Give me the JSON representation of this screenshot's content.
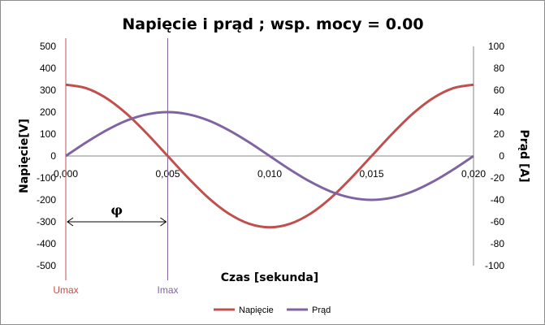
{
  "chart_data": {
    "type": "line",
    "title": "Napięcie i prąd ; wsp. mocy = 0.00",
    "xlabel": "Czas [sekunda]",
    "ylabel_left": "Napięcie[V]",
    "ylabel_right": "Prąd [A]",
    "xlim": [
      0,
      0.02
    ],
    "ylim_left": [
      -500,
      500
    ],
    "ylim_right": [
      -100,
      100
    ],
    "x_ticks": [
      "0,000",
      "0,005",
      "0,010",
      "0,015",
      "0,020"
    ],
    "y_left_ticks": [
      "500",
      "400",
      "300",
      "200",
      "100",
      "0",
      "-100",
      "-200",
      "-300",
      "-400",
      "-500"
    ],
    "y_right_ticks": [
      "100",
      "80",
      "60",
      "40",
      "20",
      "0",
      "-20",
      "-40",
      "-60",
      "-80",
      "-100"
    ],
    "x": [
      0,
      0.001,
      0.002,
      0.003,
      0.004,
      0.005,
      0.006,
      0.007,
      0.008,
      0.009,
      0.01,
      0.011,
      0.012,
      0.013,
      0.014,
      0.015,
      0.016,
      0.017,
      0.018,
      0.019,
      0.02
    ],
    "series": [
      {
        "name": "Napięcie",
        "axis": "left",
        "color": "#c0504d",
        "values": [
          325,
          309,
          263,
          191,
          100,
          0,
          -100,
          -191,
          -263,
          -309,
          -325,
          -309,
          -263,
          -191,
          -100,
          0,
          100,
          191,
          263,
          309,
          325
        ]
      },
      {
        "name": "Prąd",
        "axis": "right",
        "color": "#8064a2",
        "values": [
          0,
          12.4,
          23.5,
          32.4,
          38.0,
          40.0,
          38.0,
          32.4,
          23.5,
          12.4,
          0,
          -12.4,
          -23.5,
          -32.4,
          -38.0,
          -40.0,
          -38.0,
          -32.4,
          -23.5,
          -12.4,
          0
        ]
      }
    ],
    "markers": [
      {
        "label": "Umax",
        "x": 0,
        "color": "#c0504d"
      },
      {
        "label": "Imax",
        "x": 0.005,
        "color": "#8064a2"
      }
    ],
    "phase_annotation": {
      "label": "φ",
      "x_from": 0,
      "x_to": 0.005,
      "y": -300
    },
    "grid": false,
    "legend_position": "bottom"
  }
}
